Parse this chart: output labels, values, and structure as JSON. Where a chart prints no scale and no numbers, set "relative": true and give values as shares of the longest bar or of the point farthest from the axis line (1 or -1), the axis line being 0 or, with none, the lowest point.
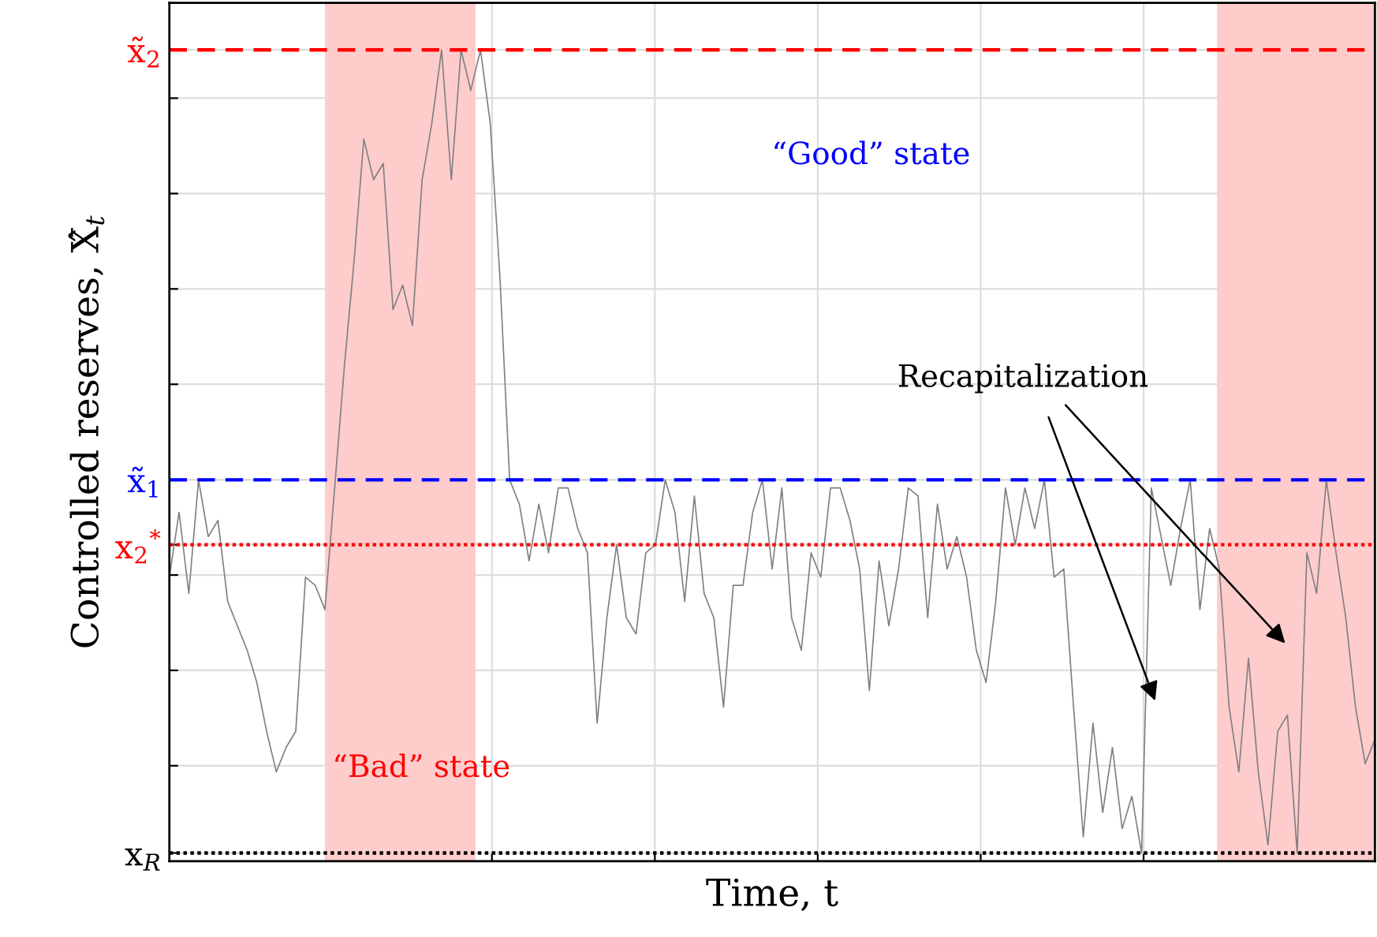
{
  "chart_data": {
    "type": "line",
    "relative": true,
    "xlabel": "Time, t",
    "ylabel": "Controlled reserves, X̂$_{t}$",
    "categories": [
      null,
      null,
      null,
      null,
      null,
      null,
      null,
      null,
      null,
      null,
      null,
      null,
      null,
      null,
      null,
      null,
      null,
      null,
      null,
      null,
      null,
      null,
      null,
      null,
      null,
      null,
      null,
      null,
      null,
      null,
      null,
      null,
      null,
      null,
      null,
      null,
      null,
      null,
      null,
      null,
      null,
      null,
      null,
      null,
      null,
      null,
      null,
      null,
      null,
      null,
      null,
      null,
      null,
      null,
      null,
      null,
      null,
      null,
      null,
      null,
      null,
      null,
      null,
      null,
      null,
      null,
      null,
      null,
      null,
      null,
      null,
      null,
      null,
      null,
      null,
      null,
      null,
      null,
      null,
      null,
      null,
      null,
      null,
      null,
      null,
      null,
      null,
      null,
      null,
      null,
      null,
      null,
      null,
      null,
      null,
      null,
      null,
      null,
      null,
      null,
      null,
      null,
      null,
      null,
      null,
      null,
      null,
      null,
      null,
      null,
      null,
      null,
      null,
      null,
      null,
      null,
      null,
      null,
      null,
      null,
      null,
      null,
      null,
      null,
      null
    ],
    "series": [
      {
        "color": "#808080",
        "values": [
          0.35,
          0.43,
          0.33,
          0.47,
          0.4,
          0.42,
          0.32,
          0.29,
          0.26,
          0.22,
          0.16,
          0.11,
          0.14,
          0.16,
          0.35,
          0.34,
          0.31,
          0.46,
          0.61,
          0.74,
          0.89,
          0.84,
          0.86,
          0.68,
          0.71,
          0.66,
          0.84,
          0.91,
          1.0,
          0.84,
          1.0,
          0.95,
          1.0,
          0.91,
          0.72,
          0.47,
          0.44,
          0.37,
          0.44,
          0.38,
          0.46,
          0.46,
          0.41,
          0.38,
          0.17,
          0.3,
          0.39,
          0.3,
          0.28,
          0.38,
          0.39,
          0.47,
          0.43,
          0.32,
          0.45,
          0.33,
          0.3,
          0.19,
          0.34,
          0.34,
          0.43,
          0.47,
          0.36,
          0.46,
          0.3,
          0.26,
          0.38,
          0.35,
          0.46,
          0.46,
          0.42,
          0.36,
          0.21,
          0.37,
          0.29,
          0.36,
          0.46,
          0.45,
          0.3,
          0.44,
          0.36,
          0.4,
          0.35,
          0.26,
          0.22,
          0.32,
          0.46,
          0.39,
          0.46,
          0.41,
          0.47,
          0.35,
          0.36,
          0.19,
          0.03,
          0.17,
          0.06,
          0.14,
          0.04,
          0.08,
          0.01,
          0.46,
          0.4,
          0.34,
          0.41,
          0.47,
          0.31,
          0.41,
          0.36,
          0.19,
          0.11,
          0.25,
          0.11,
          0.02,
          0.16,
          0.18,
          0.01,
          0.38,
          0.33,
          0.47,
          0.38,
          0.3,
          0.19,
          0.12,
          0.15
        ]
      }
    ],
    "ref_lines": [
      {
        "axis": "y",
        "value": 1.0,
        "label": "x̃$_{2}$",
        "color": "#ff0000",
        "line_style": "dashed"
      },
      {
        "axis": "y",
        "value": 0.47,
        "label": "x̃$_{1}$",
        "color": "#0000ff",
        "line_style": "dashed"
      },
      {
        "axis": "y",
        "value": 0.39,
        "label": "x$_{2}$$^{*}$",
        "color": "#ff0000",
        "line_style": "dotted"
      },
      {
        "axis": "y",
        "value": 0.01,
        "label": "x$_{R}$",
        "color": "#000000",
        "line_style": "dotted"
      }
    ],
    "annotations": [
      "“Good” state",
      "“Bad” state",
      "Recapitalization"
    ],
    "grid": true,
    "marker": "none",
    "line_style": "solid"
  }
}
